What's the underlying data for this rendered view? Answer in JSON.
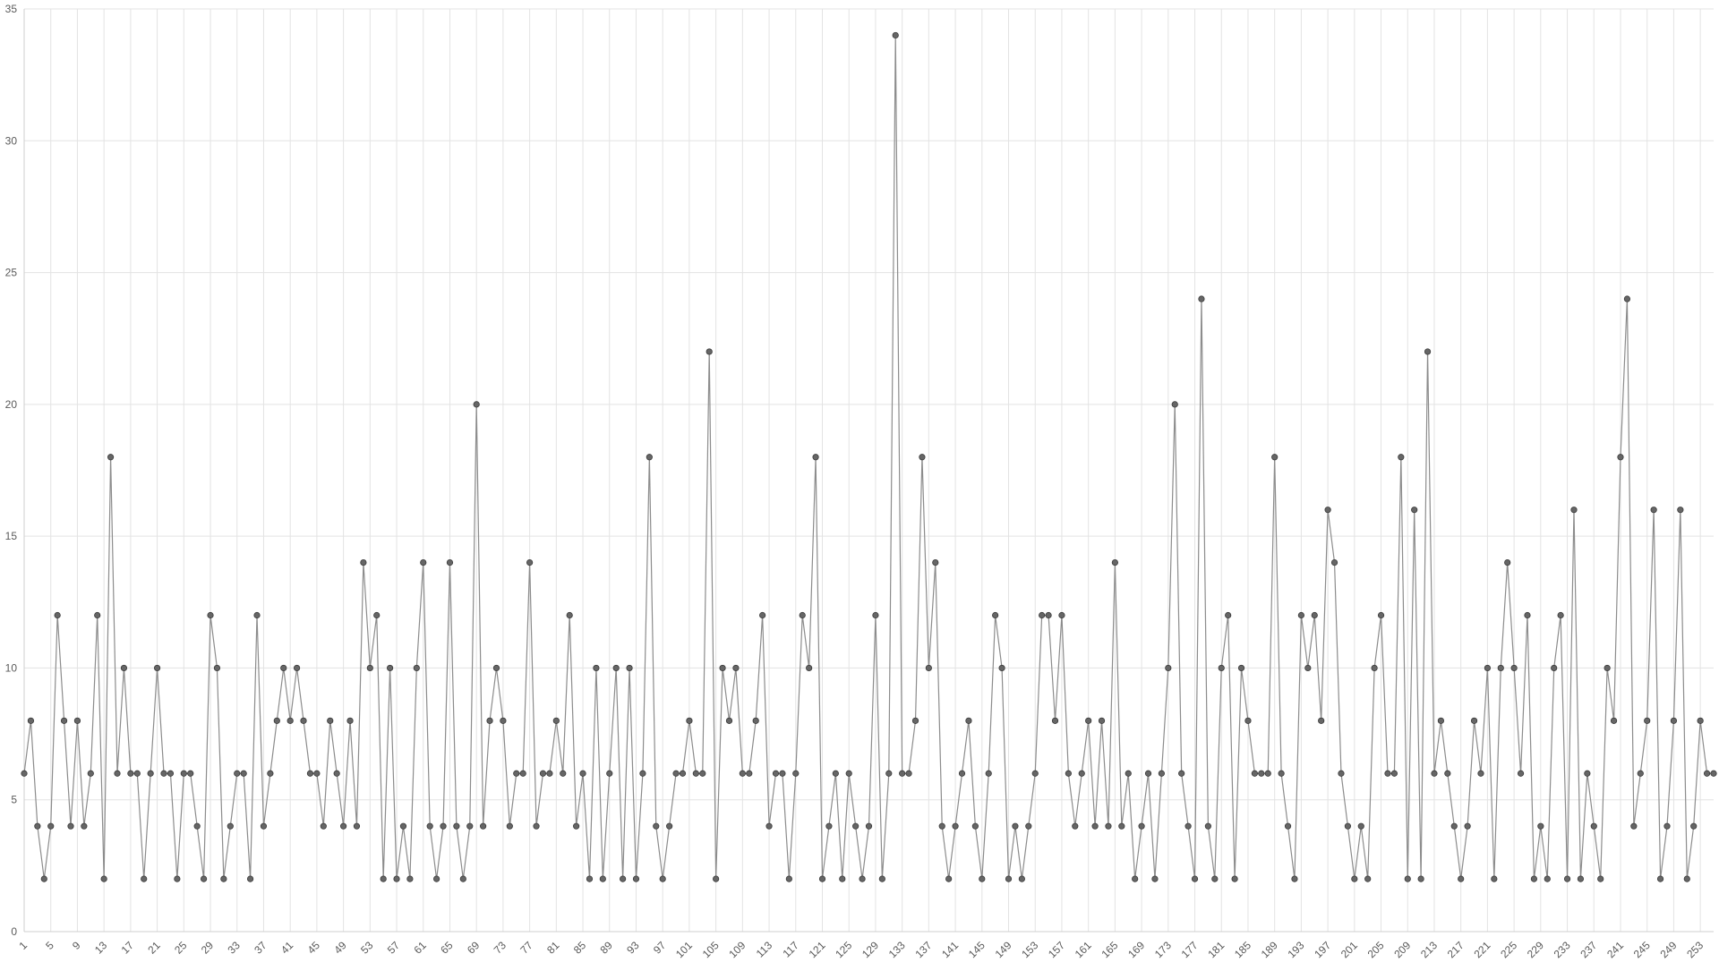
{
  "chart_data": {
    "type": "line",
    "title": "",
    "xlabel": "",
    "ylabel": "",
    "x": [
      1,
      2,
      3,
      4,
      5,
      6,
      7,
      8,
      9,
      10,
      11,
      12,
      13,
      14,
      15,
      16,
      17,
      18,
      19,
      20,
      21,
      22,
      23,
      24,
      25,
      26,
      27,
      28,
      29,
      30,
      31,
      32,
      33,
      34,
      35,
      36,
      37,
      38,
      39,
      40,
      41,
      42,
      43,
      44,
      45,
      46,
      47,
      48,
      49,
      50,
      51,
      52,
      53,
      54,
      55,
      56,
      57,
      58,
      59,
      60,
      61,
      62,
      63,
      64,
      65,
      66,
      67,
      68,
      69,
      70,
      71,
      72,
      73,
      74,
      75,
      76,
      77,
      78,
      79,
      80,
      81,
      82,
      83,
      84,
      85,
      86,
      87,
      88,
      89,
      90,
      91,
      92,
      93,
      94,
      95,
      96,
      97,
      98,
      99,
      100,
      101,
      102,
      103,
      104,
      105,
      106,
      107,
      108,
      109,
      110,
      111,
      112,
      113,
      114,
      115,
      116,
      117,
      118,
      119,
      120,
      121,
      122,
      123,
      124,
      125,
      126,
      127,
      128,
      129,
      130,
      131,
      132,
      133,
      134,
      135,
      136,
      137,
      138,
      139,
      140,
      141,
      142,
      143,
      144,
      145,
      146,
      147,
      148,
      149,
      150,
      151,
      152,
      153,
      154,
      155,
      156,
      157,
      158,
      159,
      160,
      161,
      162,
      163,
      164,
      165,
      166,
      167,
      168,
      169,
      170,
      171,
      172,
      173,
      174,
      175,
      176,
      177,
      178,
      179,
      180,
      181,
      182,
      183,
      184,
      185,
      186,
      187,
      188,
      189,
      190,
      191,
      192,
      193,
      194,
      195,
      196,
      197,
      198,
      199,
      200,
      201,
      202,
      203,
      204,
      205,
      206,
      207,
      208,
      209,
      210,
      211,
      212,
      213,
      214,
      215,
      216,
      217,
      218,
      219,
      220,
      221,
      222,
      223,
      224,
      225,
      226,
      227,
      228,
      229,
      230,
      231,
      232,
      233,
      234,
      235,
      236,
      237,
      238,
      239,
      240,
      241,
      242,
      243,
      244,
      245,
      246,
      247,
      248,
      249,
      250,
      251,
      252,
      253,
      254,
      255
    ],
    "values": [
      6,
      8,
      4,
      2,
      4,
      12,
      8,
      4,
      8,
      4,
      6,
      12,
      2,
      18,
      6,
      10,
      6,
      6,
      2,
      6,
      10,
      6,
      6,
      2,
      6,
      6,
      4,
      2,
      12,
      10,
      2,
      4,
      6,
      6,
      2,
      12,
      4,
      6,
      8,
      10,
      8,
      10,
      8,
      6,
      6,
      4,
      8,
      6,
      4,
      8,
      4,
      14,
      10,
      12,
      2,
      10,
      2,
      4,
      2,
      10,
      14,
      4,
      2,
      4,
      14,
      4,
      2,
      4,
      20,
      4,
      8,
      10,
      8,
      4,
      6,
      6,
      14,
      4,
      6,
      6,
      8,
      6,
      12,
      4,
      6,
      2,
      10,
      2,
      6,
      10,
      2,
      10,
      2,
      6,
      18,
      4,
      2,
      4,
      6,
      6,
      8,
      6,
      6,
      22,
      2,
      10,
      8,
      10,
      6,
      6,
      8,
      12,
      4,
      6,
      6,
      2,
      6,
      12,
      10,
      18,
      2,
      4,
      6,
      2,
      6,
      4,
      2,
      4,
      12,
      2,
      6,
      34,
      6,
      6,
      8,
      18,
      10,
      14,
      4,
      2,
      4,
      6,
      8,
      4,
      2,
      6,
      12,
      10,
      2,
      4,
      2,
      4,
      6,
      12,
      12,
      8,
      12,
      6,
      4,
      6,
      8,
      4,
      8,
      4,
      14,
      4,
      6,
      2,
      4,
      6,
      2,
      6,
      10,
      20,
      6,
      4,
      2,
      24,
      4,
      2,
      10,
      12,
      2,
      10,
      8,
      6,
      6,
      6,
      18,
      6,
      4,
      2,
      12,
      10,
      12,
      8,
      16,
      14,
      6,
      4,
      2,
      4,
      2,
      10,
      12,
      6,
      6,
      18,
      2,
      16,
      2,
      22,
      6,
      8,
      6,
      4,
      2,
      4,
      8,
      6,
      10,
      2,
      10,
      14,
      10,
      6,
      12,
      2,
      4,
      2,
      10,
      12,
      2,
      16,
      2,
      6,
      4,
      2,
      10,
      8,
      18,
      24,
      4,
      6,
      8,
      16,
      2,
      4,
      8,
      16,
      2,
      4,
      8,
      6,
      6
    ],
    "x_tick_labels": [
      "1",
      "5",
      "9",
      "13",
      "17",
      "21",
      "25",
      "29",
      "33",
      "37",
      "41",
      "45",
      "49",
      "53",
      "57",
      "61",
      "65",
      "69",
      "73",
      "77",
      "81",
      "85",
      "89",
      "93",
      "97",
      "101",
      "105",
      "109",
      "113",
      "117",
      "121",
      "125",
      "129",
      "133",
      "137",
      "141",
      "145",
      "149",
      "153",
      "157",
      "161",
      "165",
      "169",
      "173",
      "177",
      "181",
      "185",
      "189",
      "193",
      "197",
      "201",
      "205",
      "209",
      "213",
      "217",
      "221",
      "225",
      "229",
      "233",
      "237",
      "241",
      "245",
      "249",
      "253"
    ],
    "y_ticks": [
      0,
      5,
      10,
      15,
      20,
      25,
      30,
      35
    ],
    "xlim": [
      1,
      255
    ],
    "ylim": [
      0,
      35
    ],
    "grid": true,
    "legend": "none",
    "colors": {
      "line": "#8c8c8c",
      "point_fill": "#666666",
      "point_stroke": "#3a3a3a",
      "grid": "#e3e3e3",
      "axis": "#cfcfcf",
      "tick_text": "#5a5a5a"
    }
  }
}
